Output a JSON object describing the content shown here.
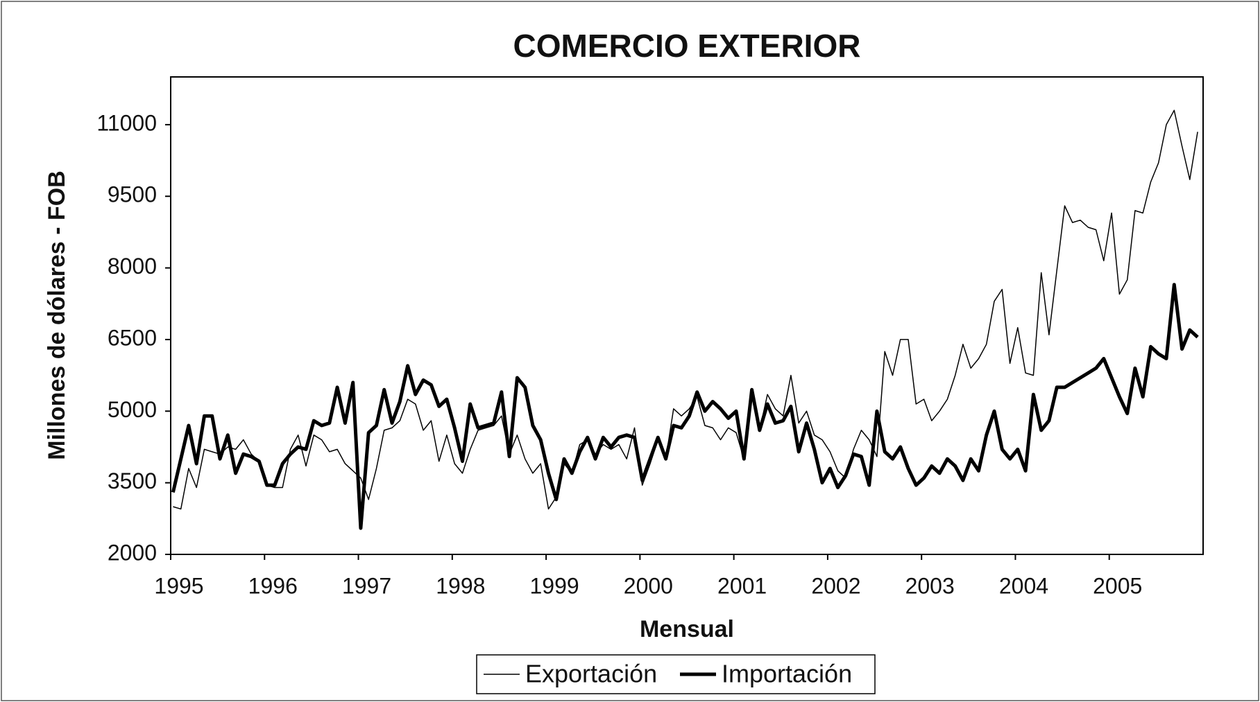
{
  "chart_data": {
    "type": "line",
    "title": "COMERCIO EXTERIOR",
    "x_label": "Mensual",
    "y_label": "Millones de dólares - FOB",
    "categories": [
      "1995",
      null,
      null,
      null,
      null,
      null,
      null,
      null,
      null,
      null,
      null,
      null,
      "1996",
      null,
      null,
      null,
      null,
      null,
      null,
      null,
      null,
      null,
      null,
      null,
      "1997",
      null,
      null,
      null,
      null,
      null,
      null,
      null,
      null,
      null,
      null,
      null,
      "1998",
      null,
      null,
      null,
      null,
      null,
      null,
      null,
      null,
      null,
      null,
      null,
      "1999",
      null,
      null,
      null,
      null,
      null,
      null,
      null,
      null,
      null,
      null,
      null,
      "2000",
      null,
      null,
      null,
      null,
      null,
      null,
      null,
      null,
      null,
      null,
      null,
      "2001",
      null,
      null,
      null,
      null,
      null,
      null,
      null,
      null,
      null,
      null,
      null,
      "2002",
      null,
      null,
      null,
      null,
      null,
      null,
      null,
      null,
      null,
      null,
      null,
      "2003",
      null,
      null,
      null,
      null,
      null,
      null,
      null,
      null,
      null,
      null,
      null,
      "2004",
      null,
      null,
      null,
      null,
      null,
      null,
      null,
      null,
      null,
      null,
      null,
      "2005",
      null,
      null,
      null,
      null,
      null,
      null,
      null,
      null,
      null,
      null,
      null
    ],
    "series": [
      {
        "name": "Exportación",
        "color": "#000000",
        "width": 1.5,
        "values": [
          3000,
          2950,
          3800,
          3400,
          4200,
          4150,
          4100,
          4250,
          4200,
          4400,
          4100,
          3950,
          3450,
          3400,
          3400,
          4200,
          4500,
          3850,
          4500,
          4400,
          4150,
          4200,
          3900,
          3750,
          3600,
          3150,
          3800,
          4600,
          4650,
          4800,
          5250,
          5150,
          4600,
          4800,
          3950,
          4500,
          3900,
          3700,
          4200,
          4600,
          4650,
          4700,
          4900,
          4100,
          4500,
          4000,
          3700,
          3900,
          2950,
          3200,
          3900,
          3700,
          4300,
          4400,
          4100,
          4300,
          4200,
          4300,
          4000,
          4650,
          3450,
          3900,
          4400,
          4000,
          5050,
          4900,
          5050,
          5300,
          4700,
          4650,
          4400,
          4650,
          4550,
          4000,
          5300,
          4600,
          5350,
          5050,
          4900,
          5750,
          4750,
          5000,
          4500,
          4400,
          4150,
          3750,
          3600,
          4200,
          4600,
          4400,
          4050,
          6250,
          5750,
          6500,
          6500,
          5150,
          5250,
          4800,
          5000,
          5250,
          5750,
          6400,
          5900,
          6100,
          6400,
          7300,
          7550,
          6000,
          6750,
          5800,
          5750,
          7900,
          6600,
          7950,
          9300,
          8950,
          9000,
          8850,
          8800,
          8150,
          9150,
          7450,
          7750,
          9200,
          9150,
          9800,
          10200,
          11000,
          11300,
          10550,
          9850,
          10850
        ]
      },
      {
        "name": "Importación",
        "color": "#000000",
        "width": 5,
        "values": [
          3300,
          4000,
          4700,
          3900,
          4900,
          4900,
          4000,
          4500,
          3700,
          4100,
          4050,
          3950,
          3450,
          3450,
          3900,
          4100,
          4250,
          4200,
          4800,
          4700,
          4750,
          5500,
          4750,
          5600,
          2550,
          4550,
          4700,
          5450,
          4750,
          5200,
          5950,
          5350,
          5650,
          5550,
          5100,
          5250,
          4650,
          3950,
          5150,
          4650,
          4700,
          4750,
          5400,
          4050,
          5700,
          5500,
          4700,
          4400,
          3700,
          3150,
          4000,
          3700,
          4150,
          4450,
          4000,
          4450,
          4250,
          4450,
          4500,
          4450,
          3550,
          4000,
          4450,
          4000,
          4700,
          4650,
          4900,
          5400,
          5000,
          5200,
          5050,
          4850,
          5000,
          4000,
          5450,
          4600,
          5150,
          4750,
          4800,
          5100,
          4150,
          4750,
          4200,
          3500,
          3800,
          3400,
          3650,
          4100,
          4050,
          3450,
          5000,
          4150,
          4000,
          4250,
          3800,
          3450,
          3600,
          3850,
          3700,
          4000,
          3850,
          3550,
          4000,
          3750,
          4500,
          5000,
          4200,
          4000,
          4200,
          3750,
          5350,
          4600,
          4800,
          5500,
          5500,
          5600,
          5700,
          5800,
          5900,
          6100,
          5700,
          5300,
          4950,
          5900,
          5300,
          6350,
          6200,
          6100,
          7650,
          6300,
          6700,
          6550
        ]
      }
    ],
    "ylim": [
      2000,
      12000
    ],
    "yticks": [
      2000,
      3500,
      5000,
      6500,
      8000,
      9500,
      11000
    ],
    "grid": false
  }
}
